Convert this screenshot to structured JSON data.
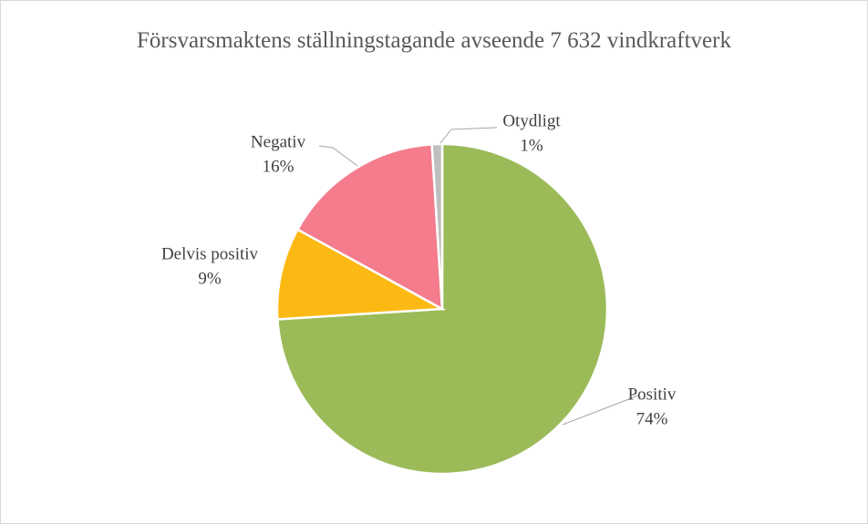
{
  "chart_data": {
    "type": "pie",
    "title": "Försvarsmaktens ställningstagande avseende 7 632 vindkraftverk",
    "categories": [
      "Positiv",
      "Delvis positiv",
      "Negativ",
      "Otydligt"
    ],
    "values": [
      74,
      9,
      16,
      1
    ],
    "value_labels": [
      "74%",
      "9%",
      "16%",
      "1%"
    ],
    "colors": [
      "#9bbb59",
      "#fdb913",
      "#f47c8c",
      "#bfbfbf"
    ]
  }
}
